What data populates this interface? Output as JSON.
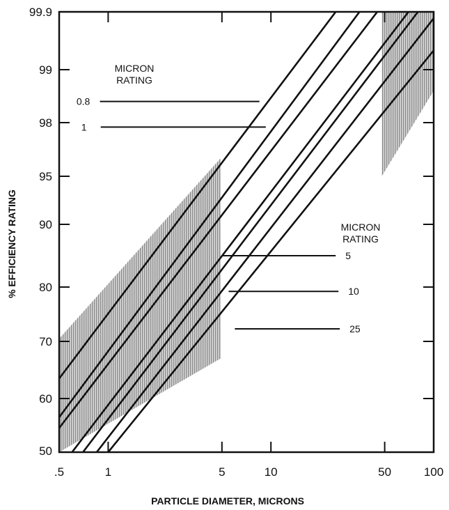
{
  "chart_data": {
    "type": "line",
    "title": "",
    "xlabel": "PARTICLE DIAMETER, MICRONS",
    "ylabel": "% EFFICIENCY RATING",
    "x_scale": "log",
    "xlim": [
      0.5,
      100
    ],
    "ylim": [
      50,
      99.9
    ],
    "x_ticks": [
      {
        "value": 0.5,
        "label": ".5"
      },
      {
        "value": 1,
        "label": "1"
      },
      {
        "value": 5,
        "label": "5"
      },
      {
        "value": 10,
        "label": "10"
      },
      {
        "value": 50,
        "label": "50"
      },
      {
        "value": 100,
        "label": "100"
      }
    ],
    "y_ticks": [
      {
        "value": 50,
        "label": "50"
      },
      {
        "value": 60,
        "label": "60"
      },
      {
        "value": 70,
        "label": "70"
      },
      {
        "value": 80,
        "label": "80"
      },
      {
        "value": 90,
        "label": "90"
      },
      {
        "value": 95,
        "label": "95"
      },
      {
        "value": 98,
        "label": "98"
      },
      {
        "value": 99,
        "label": "99"
      },
      {
        "value": 99.9,
        "label": "99.9"
      }
    ],
    "lines": [
      {
        "points": [
          [
            0.5,
            63.5
          ],
          [
            25,
            99.9
          ]
        ]
      },
      {
        "points": [
          [
            0.5,
            56.5
          ],
          [
            35,
            99.9
          ]
        ]
      },
      {
        "points": [
          [
            0.5,
            54.5
          ],
          [
            45,
            99.9
          ]
        ]
      },
      {
        "points": [
          [
            0.6,
            50
          ],
          [
            70,
            99.9
          ]
        ]
      },
      {
        "points": [
          [
            0.7,
            50
          ],
          [
            80,
            99.9
          ]
        ]
      },
      {
        "points": [
          [
            0.85,
            50
          ],
          [
            100,
            99.8
          ]
        ]
      },
      {
        "points": [
          [
            1.0,
            50
          ],
          [
            100,
            99.3
          ]
        ]
      }
    ],
    "bands": [
      {
        "x": [
          0.5,
          4.9
        ],
        "upper": [
          [
            0.5,
            70.5
          ],
          [
            4.9,
            96
          ]
        ],
        "lower": [
          [
            0.5,
            50
          ],
          [
            4.9,
            67
          ]
        ]
      },
      {
        "x": [
          48,
          100
        ],
        "upper": [
          [
            48,
            99.9
          ],
          [
            100,
            99.9
          ]
        ],
        "lower": [
          [
            48,
            95
          ],
          [
            100,
            98.6
          ]
        ]
      }
    ],
    "legend_groups": [
      {
        "title_lines": [
          "MICRON",
          "RATING"
        ],
        "entries": [
          {
            "label": "0.8",
            "line_from_x": 0.89,
            "line_to_x": 8.5,
            "y": 98.4
          },
          {
            "label": "1",
            "line_from_x": 0.9,
            "line_to_x": 9.3,
            "y": 97.75
          }
        ]
      },
      {
        "title_lines": [
          "MICRON",
          "RATING"
        ],
        "entries": [
          {
            "label": "5",
            "line_from_x": 5,
            "line_to_x": 25,
            "y": 85
          },
          {
            "label": "10",
            "line_from_x": 5.5,
            "line_to_x": 26,
            "y": 79.2
          },
          {
            "label": "25",
            "line_from_x": 6,
            "line_to_x": 26.5,
            "y": 72.3
          }
        ]
      }
    ]
  }
}
